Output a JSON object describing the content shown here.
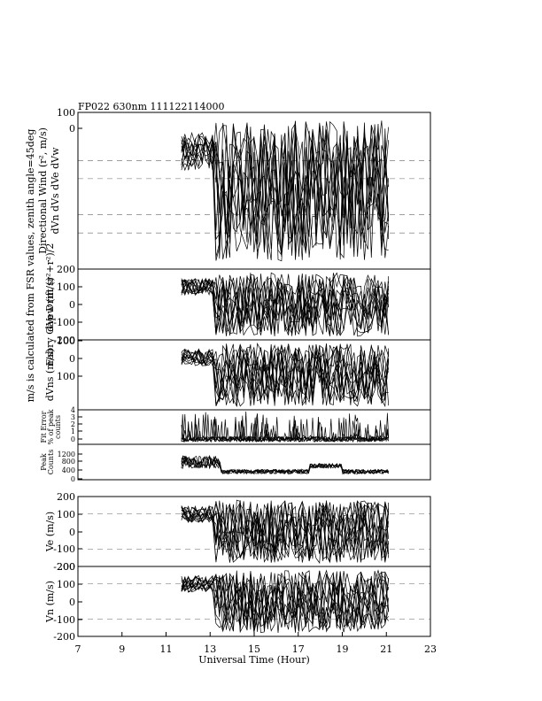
{
  "title": "FP022 630nm 111122114000",
  "xlabel": "Universal Time (Hour)",
  "x_ticks": [
    "7",
    "9",
    "11",
    "13",
    "15",
    "17",
    "19",
    "21",
    "23"
  ],
  "left_side_label": "m/s is calculated from FSR values, zenith angle=45deg",
  "chart_data": [
    {
      "id": "directional",
      "type": "line",
      "title": "FP022 630nm 111122114000",
      "ylabel_line1": "Directional Wind (r², m/s)",
      "ylabel_line2": "dVn  dVs   dVe dVw",
      "yticks": [
        "100",
        "0"
      ],
      "ylim": [
        -1200,
        100
      ],
      "dashed_levels": [
        -300,
        -450,
        -750,
        -900
      ],
      "xlim": [
        7,
        23
      ],
      "xrange_data": [
        11.7,
        21.1
      ]
    },
    {
      "id": "dvew",
      "type": "line",
      "ylabel_line1": "Fabry Gap Drift (r²+r²)/2",
      "ylabel_line2": "dVew (m/s)",
      "yticks": [
        "200",
        "100",
        "0",
        "-100",
        "-200"
      ],
      "ylim": [
        -200,
        200
      ],
      "dashed_levels": [],
      "xlim": [
        7,
        23
      ],
      "xrange_data": [
        11.7,
        21.1
      ]
    },
    {
      "id": "dvns",
      "type": "line",
      "ylabel_line1": "dVns (m/s)",
      "yticks": [
        "100",
        "0",
        "100"
      ],
      "ylim": [
        -200,
        200
      ],
      "dashed_levels": [],
      "xlim": [
        7,
        23
      ],
      "xrange_data": [
        11.7,
        21.1
      ]
    },
    {
      "id": "fiterror",
      "type": "line",
      "ylabel_line1": "Fit Error",
      "ylabel_line2": "% of peak",
      "ylabel_line3": "counts",
      "yticks": [
        "4",
        "3",
        "2",
        "1",
        "0"
      ],
      "ylim": [
        0,
        4
      ],
      "dashed_levels": [],
      "xlim": [
        7,
        23
      ],
      "xrange_data": [
        11.7,
        21.1
      ]
    },
    {
      "id": "peak",
      "type": "line",
      "ylabel_line1": "Peak",
      "ylabel_line2": "Counts",
      "yticks": [
        "1200",
        "800",
        "400",
        "0"
      ],
      "ylim": [
        0,
        1400
      ],
      "dashed_levels": [],
      "xlim": [
        7,
        23
      ],
      "xrange_data": [
        11.7,
        21.1
      ]
    },
    {
      "id": "ve",
      "type": "line",
      "ylabel_line1": "Ve (m/s)",
      "yticks": [
        "200",
        "100",
        "0",
        "-100",
        "-200"
      ],
      "ylim": [
        -200,
        200
      ],
      "dashed_levels": [
        100,
        -100
      ],
      "xlim": [
        7,
        23
      ],
      "xrange_data": [
        11.7,
        21.1
      ]
    },
    {
      "id": "vn",
      "type": "line",
      "ylabel_line1": "Vn (m/s)",
      "yticks": [
        "200",
        "100",
        "0",
        "-100",
        "-200"
      ],
      "ylim": [
        -200,
        200
      ],
      "dashed_levels": [
        100,
        -100
      ],
      "xlim": [
        7,
        23
      ],
      "xrange_data": [
        11.7,
        21.1
      ]
    }
  ]
}
